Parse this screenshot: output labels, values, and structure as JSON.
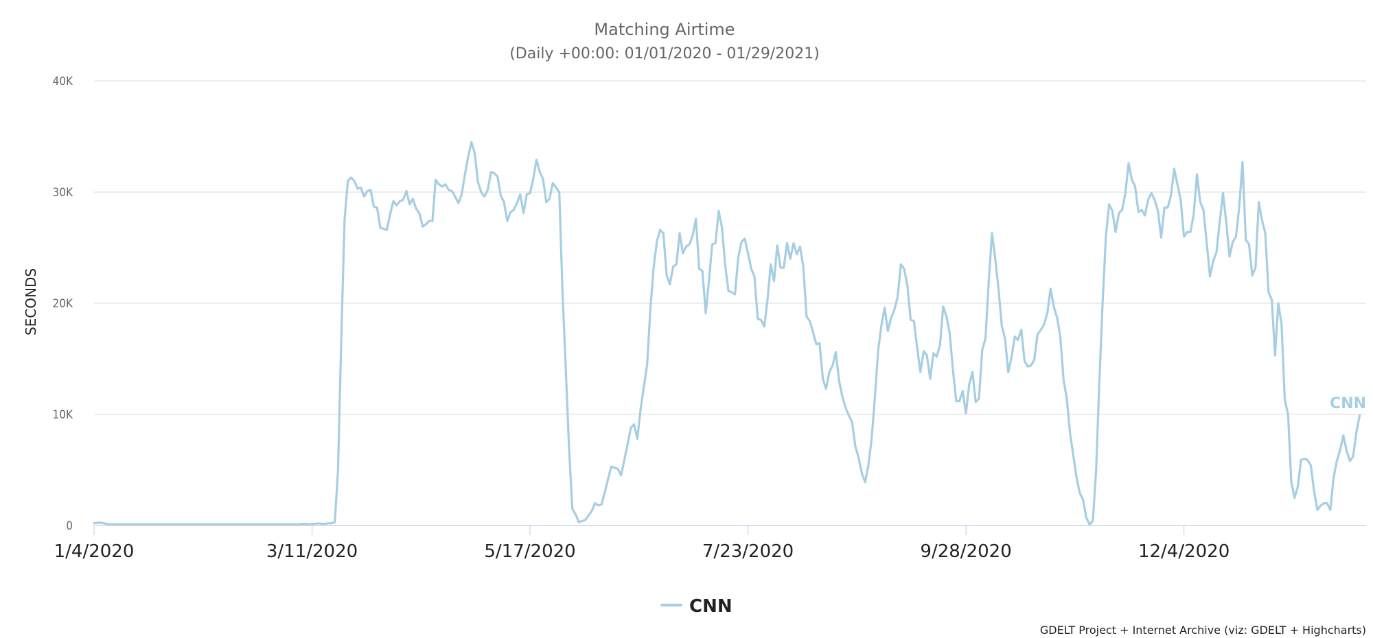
{
  "chart_data": {
    "type": "line",
    "title": "Matching Airtime",
    "subtitle": "(Daily +00:00: 01/01/2020 - 01/29/2021)",
    "xlabel": "",
    "ylabel": "SECONDS",
    "ylim": [
      0,
      40000
    ],
    "y_ticks": [
      "0",
      "10K",
      "20K",
      "30K",
      "40K"
    ],
    "x_start": "2020-01-04",
    "x_end": "2021-01-29",
    "x_tick_labels": [
      "1/4/2020",
      "3/11/2020",
      "5/17/2020",
      "7/23/2020",
      "9/28/2020",
      "12/4/2020"
    ],
    "grid": true,
    "legend_position": "bottom",
    "series": [
      {
        "name": "CNN",
        "color": "#a6cee3",
        "values": [
          200,
          250,
          250,
          200,
          150,
          100,
          100,
          100,
          100,
          100,
          100,
          100,
          100,
          100,
          100,
          100,
          100,
          100,
          100,
          100,
          100,
          100,
          100,
          100,
          100,
          100,
          100,
          100,
          100,
          100,
          100,
          100,
          100,
          100,
          100,
          100,
          100,
          100,
          100,
          100,
          100,
          100,
          100,
          100,
          100,
          100,
          100,
          100,
          100,
          100,
          100,
          100,
          100,
          100,
          100,
          100,
          100,
          100,
          100,
          100,
          100,
          100,
          100,
          100,
          150,
          150,
          100,
          150,
          150,
          200,
          150,
          150,
          200,
          200,
          300,
          5000,
          17000,
          27500,
          31000,
          31300,
          31000,
          30300,
          30400,
          29600,
          30100,
          30200,
          28700,
          28600,
          26800,
          26700,
          26600,
          28000,
          29200,
          28800,
          29200,
          29300,
          30100,
          28900,
          29400,
          28500,
          28100,
          26900,
          27100,
          27400,
          27400,
          31100,
          30700,
          30500,
          30700,
          30200,
          30100,
          29600,
          29000,
          29800,
          31600,
          33200,
          34500,
          33500,
          30900,
          30000,
          29600,
          30200,
          31800,
          31700,
          31400,
          29700,
          29100,
          27400,
          28200,
          28400,
          29000,
          29800,
          28100,
          29800,
          29900,
          31200,
          32900,
          31800,
          31200,
          29100,
          29400,
          30800,
          30400,
          30000,
          21000,
          14000,
          7000,
          1500,
          1000,
          300,
          400,
          500,
          900,
          1300,
          2000,
          1800,
          1900,
          3000,
          4200,
          5300,
          5200,
          5100,
          4500,
          5900,
          7300,
          8800,
          9100,
          7800,
          10500,
          12500,
          14500,
          19500,
          23200,
          25600,
          26600,
          26300,
          22500,
          21700,
          23300,
          23500,
          26300,
          24500,
          25100,
          25300,
          26100,
          27600,
          23100,
          22900,
          19100,
          22000,
          25300,
          25400,
          28300,
          26800,
          23400,
          21100,
          21000,
          20800,
          24100,
          25500,
          25800,
          24500,
          23100,
          22400,
          18600,
          18500,
          17900,
          20300,
          23500,
          22000,
          25200,
          23200,
          23200,
          25400,
          24000,
          25400,
          24400,
          25100,
          23300,
          18800,
          18400,
          17400,
          16300,
          16400,
          13200,
          12300,
          13800,
          14400,
          15600,
          13000,
          11600,
          10600,
          9900,
          9300,
          7100,
          6100,
          4700,
          3900,
          5400,
          7800,
          11500,
          15700,
          18000,
          19600,
          17500,
          18700,
          19400,
          20600,
          23500,
          23100,
          21600,
          18500,
          18400,
          16000,
          13800,
          15700,
          15300,
          13200,
          15500,
          15200,
          16200,
          19700,
          18800,
          17300,
          14000,
          11200,
          11200,
          12100,
          10100,
          12700,
          13800,
          11100,
          11400,
          15800,
          16800,
          22000,
          26300,
          24000,
          21300,
          18000,
          16800,
          13800,
          15100,
          17000,
          16700,
          17600,
          14800,
          14300,
          14400,
          14900,
          17200,
          17600,
          18100,
          19100,
          21300,
          19700,
          18700,
          17000,
          13100,
          11400,
          8300,
          6300,
          4300,
          2900,
          2300,
          700,
          100,
          400,
          5000,
          13000,
          20000,
          26000,
          28900,
          28300,
          26400,
          28100,
          28400,
          29900,
          32600,
          31100,
          30500,
          28200,
          28400,
          27900,
          29300,
          29900,
          29300,
          28300,
          25900,
          28600,
          28600,
          29700,
          32100,
          30700,
          29300,
          26000,
          26400,
          26400,
          28000,
          31600,
          29100,
          28400,
          25400,
          22400,
          23800,
          24600,
          27300,
          29900,
          27300,
          24200,
          25500,
          26000,
          28700,
          32700,
          25700,
          25300,
          22500,
          23200,
          29100,
          27500,
          26300,
          21000,
          20300,
          15300,
          20000,
          18100,
          11300,
          10000,
          3900,
          2500,
          3500,
          5900,
          6000,
          5900,
          5400,
          3100,
          1400,
          1800,
          2000,
          2000,
          1400,
          4300,
          5800,
          6800,
          8100,
          6700,
          5800,
          6200,
          8400,
          9900
        ]
      }
    ],
    "credits": "GDELT Project + Internet Archive (viz: GDELT + Highcharts)"
  }
}
